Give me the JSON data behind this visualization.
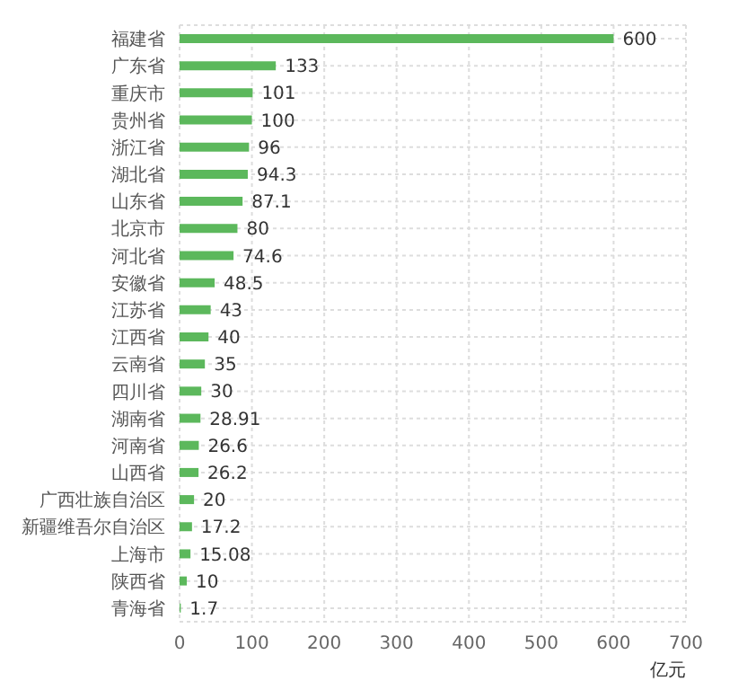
{
  "chart_data": {
    "type": "bar",
    "orientation": "horizontal",
    "xlabel": "亿元",
    "categories": [
      "福建省",
      "广东省",
      "重庆市",
      "贵州省",
      "浙江省",
      "湖北省",
      "山东省",
      "北京市",
      "河北省",
      "安徽省",
      "江苏省",
      "江西省",
      "云南省",
      "四川省",
      "湖南省",
      "河南省",
      "山西省",
      "广西壮族自治区",
      "新疆维吾尔自治区",
      "上海市",
      "陕西省",
      "青海省"
    ],
    "values": [
      600,
      133,
      101,
      100,
      96,
      94.3,
      87.1,
      80,
      74.6,
      48.5,
      43,
      40,
      35,
      30,
      28.91,
      26.6,
      26.2,
      20,
      17.2,
      15.08,
      10,
      1.7
    ],
    "color": "#5cb85c",
    "xlim": [
      0,
      700
    ],
    "xticks": [
      0,
      100,
      200,
      300,
      400,
      500,
      600,
      700
    ],
    "grid": true,
    "data_labels": true
  }
}
